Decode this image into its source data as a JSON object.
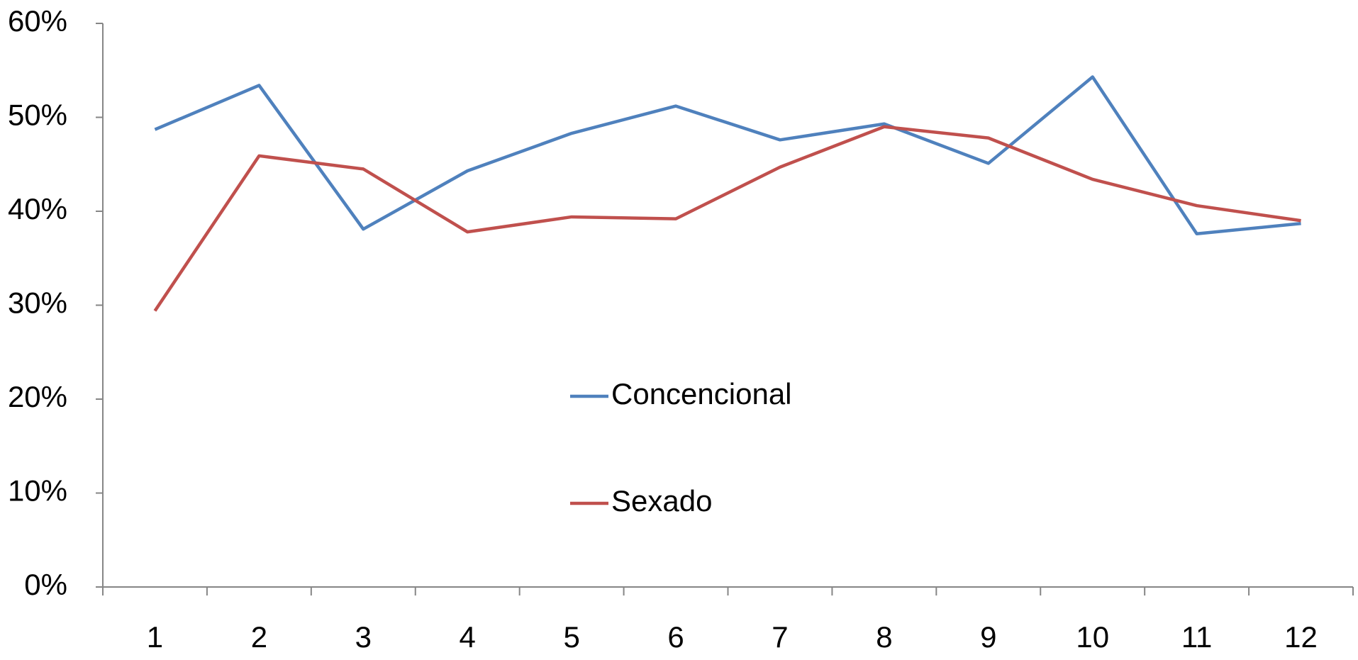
{
  "chart_data": {
    "type": "line",
    "categories": [
      1,
      2,
      3,
      4,
      5,
      6,
      7,
      8,
      9,
      10,
      11,
      12
    ],
    "series": [
      {
        "name": "Concencional",
        "color": "#4f81bd",
        "values": [
          48.7,
          53.4,
          38.1,
          44.3,
          48.3,
          51.2,
          47.6,
          49.3,
          45.1,
          54.3,
          37.6,
          38.7
        ]
      },
      {
        "name": "Sexado",
        "color": "#c0504d",
        "values": [
          29.4,
          45.9,
          44.5,
          37.8,
          39.4,
          39.2,
          44.7,
          49.0,
          47.8,
          43.4,
          40.6,
          39.0
        ]
      }
    ],
    "ylim": [
      0,
      60
    ],
    "yticks": [
      {
        "value": 0,
        "label": "0%"
      },
      {
        "value": 10,
        "label": "10%"
      },
      {
        "value": 20,
        "label": "20%"
      },
      {
        "value": 30,
        "label": "30%"
      },
      {
        "value": 40,
        "label": "40%"
      },
      {
        "value": 50,
        "label": "50%"
      },
      {
        "value": 60,
        "label": "60%"
      }
    ],
    "grid": false,
    "legend": "center"
  }
}
